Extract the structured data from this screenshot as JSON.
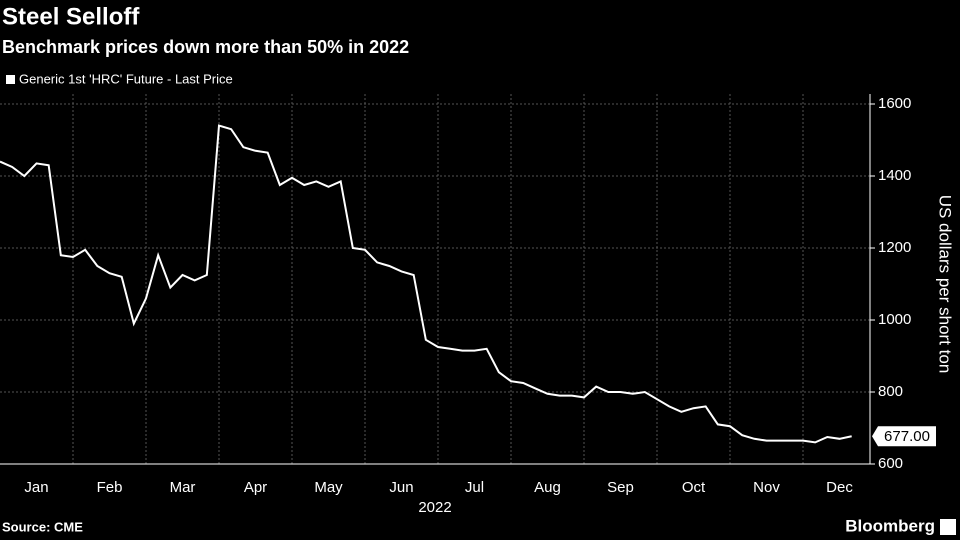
{
  "chart_data": {
    "type": "line",
    "title": "Steel Selloff",
    "subtitle": "Benchmark prices down more than 50% in 2022",
    "x_label": "2022",
    "y_label": "US dollars per short ton",
    "source": "Source: CME",
    "brand": "Bloomberg",
    "categories": [
      null,
      null,
      null,
      "Jan",
      null,
      null,
      null,
      null,
      null,
      "Feb",
      null,
      null,
      null,
      null,
      null,
      "Mar",
      null,
      null,
      null,
      null,
      null,
      "Apr",
      null,
      null,
      null,
      null,
      null,
      "May",
      null,
      null,
      null,
      null,
      null,
      "Jun",
      null,
      null,
      null,
      null,
      null,
      "Jul",
      null,
      null,
      null,
      null,
      null,
      "Aug",
      null,
      null,
      null,
      null,
      null,
      "Sep",
      null,
      null,
      null,
      null,
      null,
      "Oct",
      null,
      null,
      null,
      null,
      null,
      "Nov",
      null,
      null,
      null,
      null,
      null,
      "Dec",
      null
    ],
    "series": [
      {
        "name": "Generic 1st 'HRC' Future - Last Price",
        "color": "#ffffff",
        "values": [
          1440,
          1425,
          1400,
          1435,
          1430,
          1180,
          1175,
          1195,
          1150,
          1130,
          1120,
          990,
          1060,
          1180,
          1090,
          1125,
          1110,
          1125,
          1540,
          1530,
          1480,
          1470,
          1465,
          1375,
          1395,
          1375,
          1385,
          1370,
          1385,
          1200,
          1195,
          1160,
          1150,
          1135,
          1125,
          945,
          925,
          920,
          915,
          915,
          920,
          855,
          830,
          825,
          810,
          795,
          790,
          790,
          785,
          815,
          800,
          800,
          795,
          800,
          780,
          760,
          745,
          755,
          760,
          710,
          705,
          680,
          670,
          665,
          665,
          665,
          665,
          660,
          675,
          670,
          677
        ],
        "value_labels": [
          null,
          null,
          null,
          null,
          null,
          null,
          null,
          null,
          null,
          null,
          null,
          null,
          null,
          null,
          null,
          null,
          null,
          null,
          null,
          null,
          null,
          null,
          null,
          null,
          null,
          null,
          null,
          null,
          null,
          null,
          null,
          null,
          null,
          null,
          null,
          null,
          null,
          null,
          null,
          null,
          null,
          null,
          null,
          null,
          null,
          null,
          null,
          null,
          null,
          null,
          null,
          null,
          null,
          null,
          null,
          null,
          null,
          null,
          null,
          null,
          null,
          null,
          null,
          null,
          null,
          null,
          null,
          null,
          null,
          null,
          "677.00"
        ]
      }
    ],
    "ylim": [
      600,
      1600
    ],
    "yticks": [
      600,
      800,
      1000,
      1200,
      1400,
      1600
    ],
    "grid": true
  }
}
